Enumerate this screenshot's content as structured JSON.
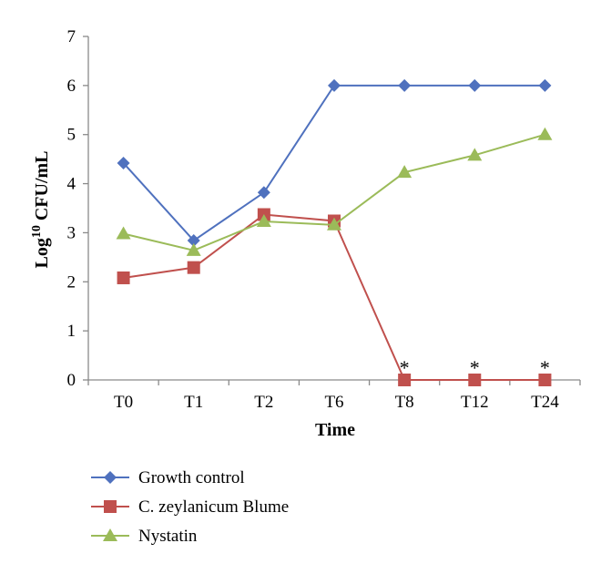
{
  "chart_data": {
    "type": "line",
    "title": "",
    "xlabel": "Time",
    "ylabel": "Log",
    "ylabel_superscript": "10",
    "ylabel_suffix": "CFU/mL",
    "categories": [
      "T0",
      "T1",
      "T2",
      "T6",
      "T8",
      "T12",
      "T24"
    ],
    "ylim": [
      0,
      7
    ],
    "yticks": [
      "0",
      "1",
      "2",
      "3",
      "4",
      "5",
      "6",
      "7"
    ],
    "grid": false,
    "legend_position": "bottom",
    "series": [
      {
        "name": "Growth control",
        "color": "#4F71BE",
        "marker": "diamond",
        "values": [
          4.42,
          2.84,
          3.82,
          6.0,
          6.0,
          6.0,
          6.0
        ]
      },
      {
        "name": "C. zeylanicum Blume",
        "color": "#C0504D",
        "marker": "square",
        "values": [
          2.08,
          2.29,
          3.37,
          3.24,
          0.0,
          0.0,
          0.0
        ]
      },
      {
        "name": "Nystatin",
        "color": "#9BBB59",
        "marker": "triangle",
        "values": [
          2.98,
          2.64,
          3.23,
          3.16,
          4.23,
          4.58,
          5.0
        ]
      }
    ],
    "annotations": [
      {
        "text": "*",
        "category": "T8",
        "value": 0
      },
      {
        "text": "*",
        "category": "T12",
        "value": 0
      },
      {
        "text": "*",
        "category": "T24",
        "value": 0
      }
    ]
  }
}
